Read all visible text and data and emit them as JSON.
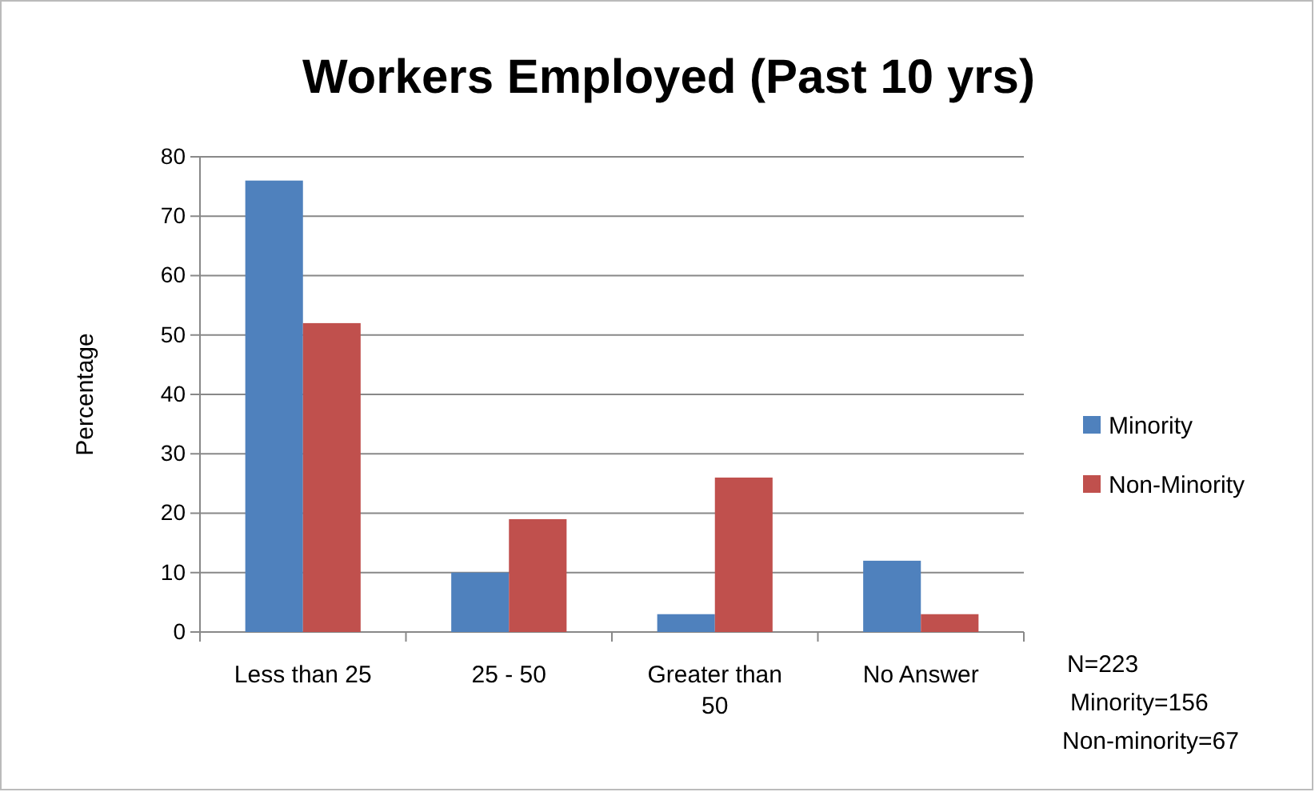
{
  "chart_data": {
    "type": "bar",
    "title": "Workers Employed (Past 10 yrs)",
    "ylabel": "Percentage",
    "categories": [
      "Less than 25",
      "25 - 50",
      "Greater than 50",
      "No Answer"
    ],
    "series": [
      {
        "name": "Minority",
        "color": "#4f81bd",
        "values": [
          76,
          10,
          3,
          12
        ]
      },
      {
        "name": "Non-Minority",
        "color": "#c0504d",
        "values": [
          52,
          19,
          26,
          3
        ]
      }
    ],
    "ylim": [
      0,
      80
    ],
    "yticks": [
      0,
      10,
      20,
      30,
      40,
      50,
      60,
      70,
      80
    ],
    "grid": "y",
    "legend": "right",
    "annotations": [
      "N=223",
      "Minority=156",
      "Non-minority=67"
    ]
  }
}
